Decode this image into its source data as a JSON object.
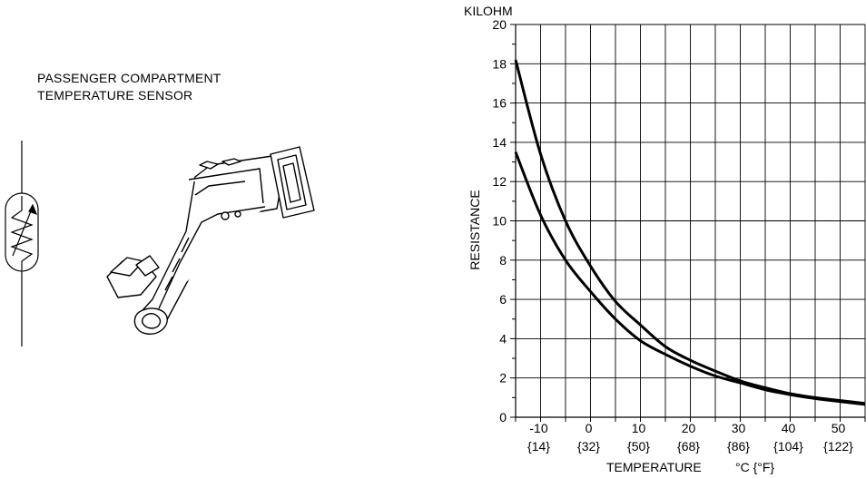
{
  "component": {
    "title_line1": "PASSENGER COMPARTMENT",
    "title_line2": "TEMPERATURE SENSOR",
    "symbol_icon": "thermistor-symbol-icon",
    "illustration_icon": "temperature-sensor-illustration-icon"
  },
  "chart_data": {
    "type": "line",
    "title": "",
    "ylabel": "RESISTANCE",
    "yunit": "KILOHM",
    "xlabel": "TEMPERATURE",
    "xunit": "°C {°F}",
    "xlim": [
      -15,
      55
    ],
    "ylim": [
      0,
      20
    ],
    "grid": true,
    "x_ticks": [
      -10,
      0,
      10,
      20,
      30,
      40,
      50
    ],
    "x_tick_labels_c": [
      "-10",
      "0",
      "10",
      "20",
      "30",
      "40",
      "50"
    ],
    "x_tick_labels_f": [
      "{14}",
      "{32}",
      "{50}",
      "{68}",
      "{86}",
      "{104}",
      "{122}"
    ],
    "y_ticks": [
      0,
      2,
      4,
      6,
      8,
      10,
      12,
      14,
      16,
      18,
      20
    ],
    "y_tick_labels": [
      "0",
      "2",
      "4",
      "6",
      "8",
      "10",
      "12",
      "14",
      "16",
      "18",
      "20"
    ],
    "series": [
      {
        "x": [
          -15,
          -10,
          -5,
          0,
          5,
          10,
          15,
          20,
          25,
          30,
          35,
          40,
          45,
          50,
          55
        ],
        "values": [
          18.2,
          13.4,
          10.0,
          7.7,
          5.9,
          4.7,
          3.6,
          2.9,
          2.35,
          1.85,
          1.5,
          1.2,
          1.0,
          0.85,
          0.7
        ]
      },
      {
        "x": [
          -15,
          -10,
          -5,
          0,
          5,
          10,
          15,
          20,
          25,
          30,
          35,
          40,
          45,
          50,
          55
        ],
        "values": [
          13.5,
          10.3,
          8.0,
          6.4,
          5.0,
          3.9,
          3.2,
          2.6,
          2.1,
          1.75,
          1.4,
          1.15,
          0.95,
          0.8,
          0.65
        ]
      }
    ],
    "line_color": "#000000"
  }
}
